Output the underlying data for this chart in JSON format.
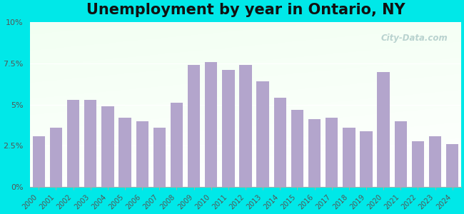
{
  "title": "Unemployment by year in Ontario, NY",
  "years": [
    2000,
    2001,
    2002,
    2003,
    2004,
    2005,
    2006,
    2007,
    2008,
    2009,
    2010,
    2011,
    2012,
    2013,
    2014,
    2015,
    2016,
    2017,
    2018,
    2019,
    2020,
    2021,
    2022,
    2023,
    2024
  ],
  "values": [
    3.1,
    3.6,
    5.3,
    5.3,
    4.9,
    4.2,
    4.0,
    3.6,
    5.1,
    7.4,
    7.6,
    7.1,
    7.4,
    6.4,
    5.4,
    4.7,
    4.1,
    4.2,
    3.6,
    3.4,
    7.0,
    4.0,
    2.8,
    3.1,
    2.6
  ],
  "bar_color": "#b3a5cc",
  "outer_background": "#00e8e8",
  "ylim": [
    0,
    10
  ],
  "yticks": [
    0,
    2.5,
    5.0,
    7.5,
    10.0
  ],
  "ytick_labels": [
    "0%",
    "2.5%",
    "5%",
    "7.5%",
    "10%"
  ],
  "title_fontsize": 15,
  "watermark": "City-Data.com"
}
